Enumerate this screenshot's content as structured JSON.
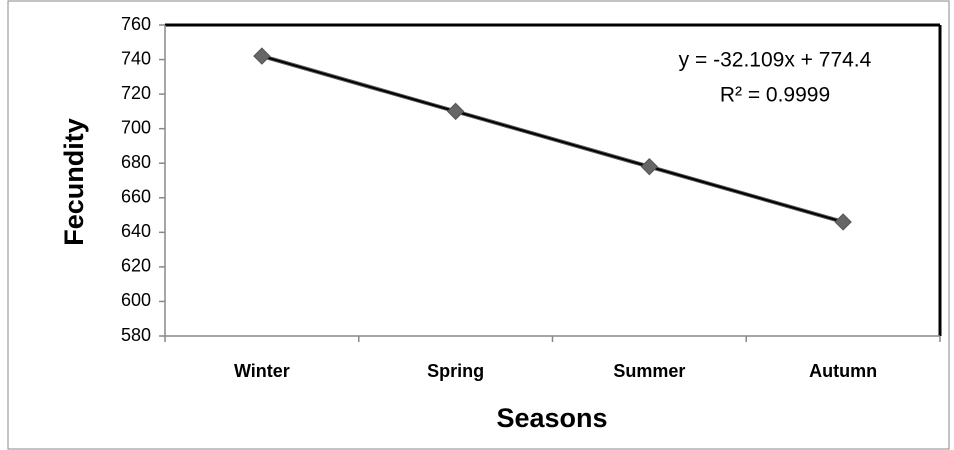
{
  "chart_data": {
    "type": "line",
    "x_label": "Seasons",
    "y_label": "Fecundity",
    "categories": [
      "Winter",
      "Spring",
      "Summer",
      "Autumn"
    ],
    "series": [
      {
        "name": "Fecundity",
        "color": "#595959",
        "values": [
          742,
          710,
          678,
          646
        ]
      }
    ],
    "ylim": [
      580,
      760
    ],
    "yticks": [
      580,
      600,
      620,
      640,
      660,
      680,
      700,
      720,
      740,
      760
    ],
    "trendline": true,
    "trendline_color": "#000000",
    "annotations": [
      "y = -32.109x + 774.4",
      "R² = 0.9999"
    ]
  }
}
